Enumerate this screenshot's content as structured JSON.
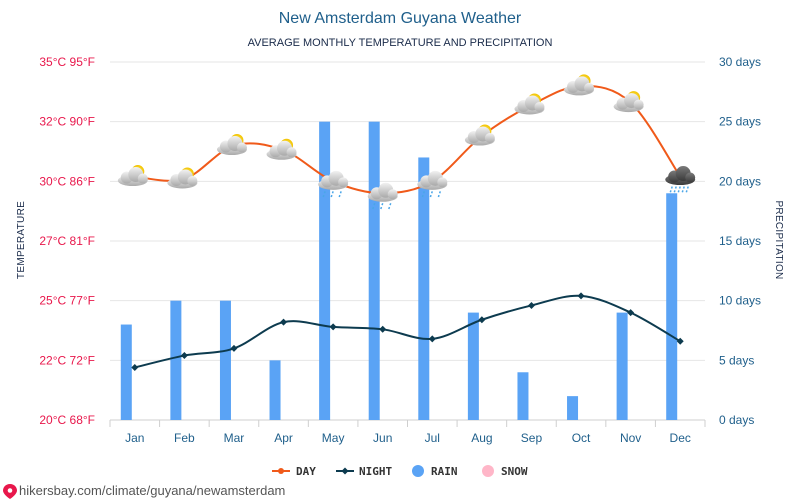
{
  "chart_data": {
    "type": "line",
    "title": "New Amsterdam Guyana Weather",
    "subtitle": "AVERAGE MONTHLY TEMPERATURE AND PRECIPITATION",
    "categories": [
      "Jan",
      "Feb",
      "Mar",
      "Apr",
      "May",
      "Jun",
      "Jul",
      "Aug",
      "Sep",
      "Oct",
      "Nov",
      "Dec"
    ],
    "ylabel_left": "TEMPERATURE",
    "ylabel_right": "PRECIPITATION",
    "left_ticks": [
      "20°C 68°F",
      "22°C 72°F",
      "25°C 77°F",
      "27°C 81°F",
      "30°C 86°F",
      "32°C 90°F",
      "35°C 95°F"
    ],
    "right_ticks": [
      "0 days",
      "5 days",
      "10 days",
      "15 days",
      "20 days",
      "25 days",
      "30 days"
    ],
    "ylim_left_celsius": [
      20,
      35
    ],
    "ylim_right_days": [
      0,
      30
    ],
    "series": [
      {
        "name": "DAY",
        "kind": "line",
        "axis": "left",
        "color": "#f05a1a",
        "values": [
          30.2,
          30.1,
          31.5,
          31.3,
          30.0,
          29.5,
          30.0,
          31.9,
          33.2,
          34.0,
          33.3,
          30.2
        ]
      },
      {
        "name": "NIGHT",
        "kind": "line",
        "axis": "left",
        "color": "#0d3b4f",
        "values": [
          22.2,
          22.7,
          23.0,
          24.1,
          23.9,
          23.8,
          23.4,
          24.2,
          24.8,
          25.2,
          24.5,
          23.3
        ]
      },
      {
        "name": "RAIN",
        "kind": "bar",
        "axis": "right",
        "color": "#5aa3f5",
        "values": [
          8,
          10,
          10,
          5,
          25,
          25,
          22,
          9,
          4,
          2,
          9,
          19
        ]
      },
      {
        "name": "SNOW",
        "kind": "bar",
        "axis": "right",
        "color": "#ffb6c8",
        "values": [
          0,
          0,
          0,
          0,
          0,
          0,
          0,
          0,
          0,
          0,
          0,
          0
        ]
      }
    ],
    "weather_icons": [
      "partly-cloudy-icon",
      "partly-cloudy-icon",
      "partly-cloudy-icon",
      "partly-cloudy-icon",
      "rain-cloud-icon",
      "rain-cloud-icon",
      "rain-cloud-icon",
      "partly-cloudy-icon",
      "partly-cloudy-icon",
      "partly-cloudy-icon",
      "partly-cloudy-icon",
      "heavy-rain-cloud-icon"
    ],
    "grid": true,
    "legend_position": "bottom-center"
  },
  "footer": {
    "source_text": "hikersbay.com/climate/guyana/newamsterdam"
  },
  "colors": {
    "title": "#1f5f8b",
    "left_axis": "#e8174b",
    "right_axis": "#1f5f8b",
    "grid": "#e6e6e6"
  }
}
